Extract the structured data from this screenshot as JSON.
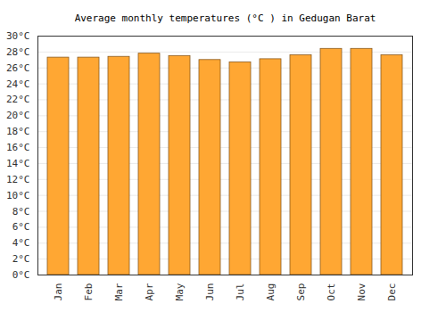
{
  "chart_data": {
    "type": "bar",
    "title": "Average monthly temperatures (°C ) in Gedugan Barat",
    "categories": [
      "Jan",
      "Feb",
      "Mar",
      "Apr",
      "May",
      "Jun",
      "Jul",
      "Aug",
      "Sep",
      "Oct",
      "Nov",
      "Dec"
    ],
    "values": [
      27.3,
      27.3,
      27.4,
      27.8,
      27.5,
      27.0,
      26.7,
      27.1,
      27.6,
      28.4,
      28.4,
      27.6
    ],
    "color": "#ffa733",
    "ylim": [
      0,
      30
    ],
    "yticks": [
      {
        "value": 0,
        "label": "0°C"
      },
      {
        "value": 2,
        "label": "2°C"
      },
      {
        "value": 4,
        "label": "4°C"
      },
      {
        "value": 6,
        "label": "6°C"
      },
      {
        "value": 8,
        "label": "8°C"
      },
      {
        "value": 10,
        "label": "10°C"
      },
      {
        "value": 12,
        "label": "12°C"
      },
      {
        "value": 14,
        "label": "14°C"
      },
      {
        "value": 16,
        "label": "16°C"
      },
      {
        "value": 18,
        "label": "18°C"
      },
      {
        "value": 20,
        "label": "20°C"
      },
      {
        "value": 22,
        "label": "22°C"
      },
      {
        "value": 24,
        "label": "24°C"
      },
      {
        "value": 26,
        "label": "26°C"
      },
      {
        "value": 28,
        "label": "28°C"
      },
      {
        "value": 30,
        "label": "30°C"
      }
    ],
    "grid": true
  }
}
